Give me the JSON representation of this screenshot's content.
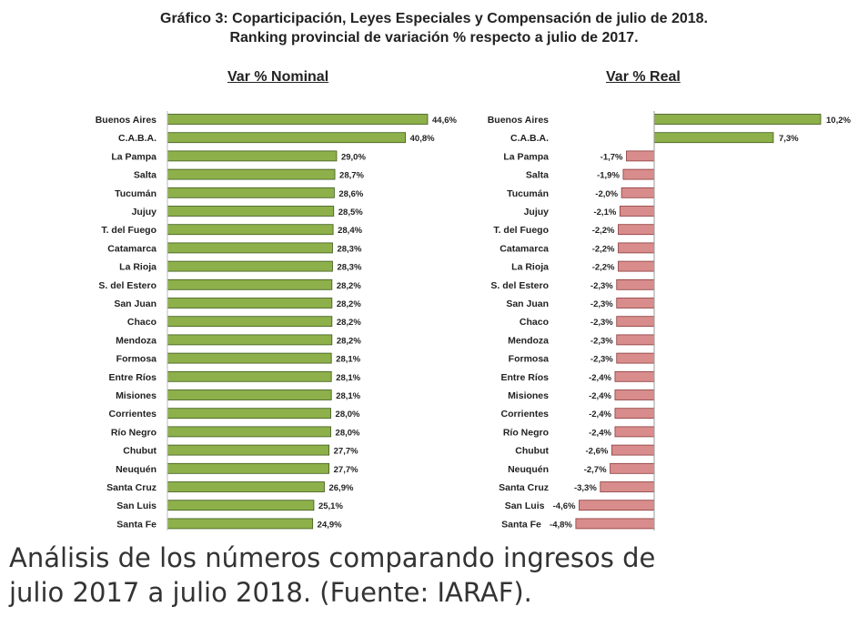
{
  "header": {
    "title_line1": "Gráfico 3: Coparticipación, Leyes Especiales y Compensación de julio de 2018.",
    "title_line2": "Ranking provincial de variación % respecto a julio de 2017."
  },
  "caption": {
    "line1": "Análisis de los números comparando ingresos de",
    "line2": "julio 2017 a julio 2018. (Fuente: IARAF)."
  },
  "colors": {
    "nominal_bar": "#8db04a",
    "real_bar": "#d98c8c",
    "bar_stroke": "#3f5a1c",
    "real_stroke": "#8a3a3a"
  },
  "chart_data": [
    {
      "type": "bar",
      "orientation": "horizontal",
      "title": "Var % Nominal",
      "categories": [
        "Buenos Aires",
        "C.A.B.A.",
        "La Pampa",
        "Salta",
        "Tucumán",
        "Jujuy",
        "T. del Fuego",
        "Catamarca",
        "La Rioja",
        "S. del Estero",
        "San Juan",
        "Chaco",
        "Mendoza",
        "Formosa",
        "Entre Ríos",
        "Misiones",
        "Corrientes",
        "Río Negro",
        "Chubut",
        "Neuquén",
        "Santa Cruz",
        "San Luis",
        "Santa Fe"
      ],
      "values": [
        44.6,
        40.8,
        29.0,
        28.7,
        28.6,
        28.5,
        28.4,
        28.3,
        28.3,
        28.2,
        28.2,
        28.2,
        28.2,
        28.1,
        28.1,
        28.1,
        28.0,
        28.0,
        27.7,
        27.7,
        26.9,
        25.1,
        24.9
      ],
      "labels": [
        "44,6%",
        "40,8%",
        "29,0%",
        "28,7%",
        "28,6%",
        "28,5%",
        "28,4%",
        "28,3%",
        "28,3%",
        "28,2%",
        "28,2%",
        "28,2%",
        "28,2%",
        "28,1%",
        "28,1%",
        "28,1%",
        "28,0%",
        "28,0%",
        "27,7%",
        "27,7%",
        "26,9%",
        "25,1%",
        "24,9%"
      ],
      "xlim": [
        0,
        50
      ]
    },
    {
      "type": "bar",
      "orientation": "horizontal",
      "title": "Var % Real",
      "categories": [
        "Buenos Aires",
        "C.A.B.A.",
        "La Pampa",
        "Salta",
        "Tucumán",
        "Jujuy",
        "T. del Fuego",
        "Catamarca",
        "La Rioja",
        "S. del Estero",
        "San Juan",
        "Chaco",
        "Mendoza",
        "Formosa",
        "Entre Ríos",
        "Misiones",
        "Corrientes",
        "Río Negro",
        "Chubut",
        "Neuquén",
        "Santa Cruz",
        "San Luis",
        "Santa Fe"
      ],
      "values": [
        10.2,
        7.3,
        -1.7,
        -1.9,
        -2.0,
        -2.1,
        -2.2,
        -2.2,
        -2.2,
        -2.3,
        -2.3,
        -2.3,
        -2.3,
        -2.3,
        -2.4,
        -2.4,
        -2.4,
        -2.4,
        -2.6,
        -2.7,
        -3.3,
        -4.6,
        -4.8
      ],
      "labels": [
        "10,2%",
        "7,3%",
        "-1,7%",
        "-1,9%",
        "-2,0%",
        "-2,1%",
        "-2,2%",
        "-2,2%",
        "-2,2%",
        "-2,3%",
        "-2,3%",
        "-2,3%",
        "-2,3%",
        "-2,3%",
        "-2,4%",
        "-2,4%",
        "-2,4%",
        "-2,4%",
        "-2,6%",
        "-2,7%",
        "-3,3%",
        "-4,6%",
        "-4,8%"
      ],
      "xlim": [
        -5,
        10.5
      ]
    }
  ]
}
